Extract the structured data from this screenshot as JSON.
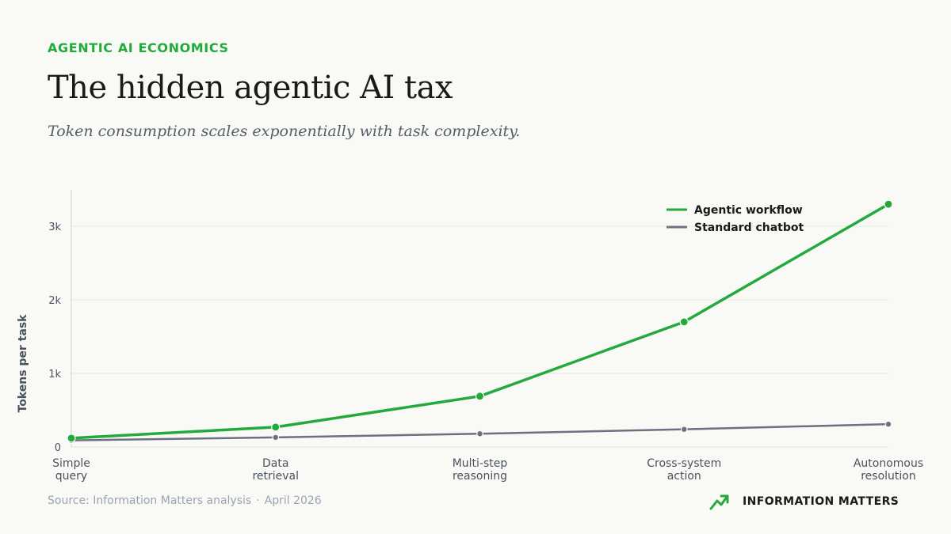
{
  "header": {
    "eyebrow": "AGENTIC AI ECONOMICS",
    "title": "The hidden agentic AI tax",
    "subtitle": "Token consumption scales exponentially with task complexity."
  },
  "footer": {
    "source": "Source: Information Matters analysis",
    "separator": "·",
    "date": "April 2026",
    "brand": "INFORMATION MATTERS",
    "brand_icon": "trend-up-arrow-icon"
  },
  "colors": {
    "accent": "#22aa3c",
    "secondary": "#6b7180",
    "axis_text": "#4a5260",
    "grid": "#e6e6e3"
  },
  "chart_data": {
    "type": "line",
    "categories": [
      [
        "Simple",
        "query"
      ],
      [
        "Data",
        "retrieval"
      ],
      [
        "Multi-step",
        "reasoning"
      ],
      [
        "Cross-system",
        "action"
      ],
      [
        "Autonomous",
        "resolution"
      ]
    ],
    "series": [
      {
        "name": "Agentic workflow",
        "values": [
          120,
          270,
          690,
          1700,
          3300
        ],
        "color": "#22aa3c"
      },
      {
        "name": "Standard chatbot",
        "values": [
          90,
          130,
          180,
          240,
          310
        ],
        "color": "#6b7180"
      }
    ],
    "ylabel": "Tokens per task",
    "xlabel": "",
    "ylim": [
      0,
      3500
    ],
    "yticks": [
      0,
      1000,
      2000,
      3000
    ],
    "ytick_labels": [
      "0",
      "1k",
      "2k",
      "3k"
    ],
    "grid": true,
    "legend_position": "top-right"
  }
}
